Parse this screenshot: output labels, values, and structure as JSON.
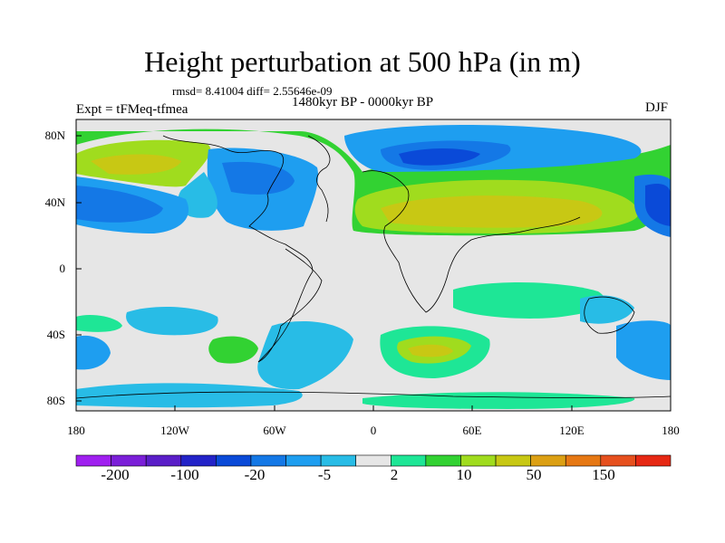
{
  "title": "Height perturbation at 500 hPa (in m)",
  "rmsd_text": "rmsd= 8.41004 diff= 2.55646e-09",
  "expt": "Expt = tFMeq-tfmea",
  "period": "1480kyr BP - 0000kyr BP",
  "season": "DJF",
  "lat_labels": [
    "80N",
    "40N",
    "0",
    "40S",
    "80S"
  ],
  "lon_labels": [
    "180",
    "120W",
    "60W",
    "0",
    "60E",
    "120E",
    "180"
  ],
  "colorbar": {
    "labels": [
      "-200",
      "-100",
      "-20",
      "-5",
      "2",
      "10",
      "50",
      "150"
    ],
    "colors": [
      "#a020f0",
      "#7b1fd8",
      "#5a1ec8",
      "#2323c8",
      "#0a4ad8",
      "#1478e6",
      "#1e9ef0",
      "#28bce6",
      "#e6e6e6",
      "#1ee696",
      "#32d232",
      "#a0dc1e",
      "#c8c814",
      "#dca014",
      "#e67814",
      "#e6501e",
      "#e62814"
    ]
  },
  "palette": {
    "neutral": "#e6e6e6",
    "light_blue": "#28bce6",
    "mid_blue": "#1e9ef0",
    "blue": "#1478e6",
    "deep_blue": "#0a4ad8",
    "teal_green": "#1ee696",
    "green": "#32d232",
    "yellow_green": "#a0dc1e",
    "olive_yellow": "#c8c814",
    "gold": "#dca014"
  }
}
